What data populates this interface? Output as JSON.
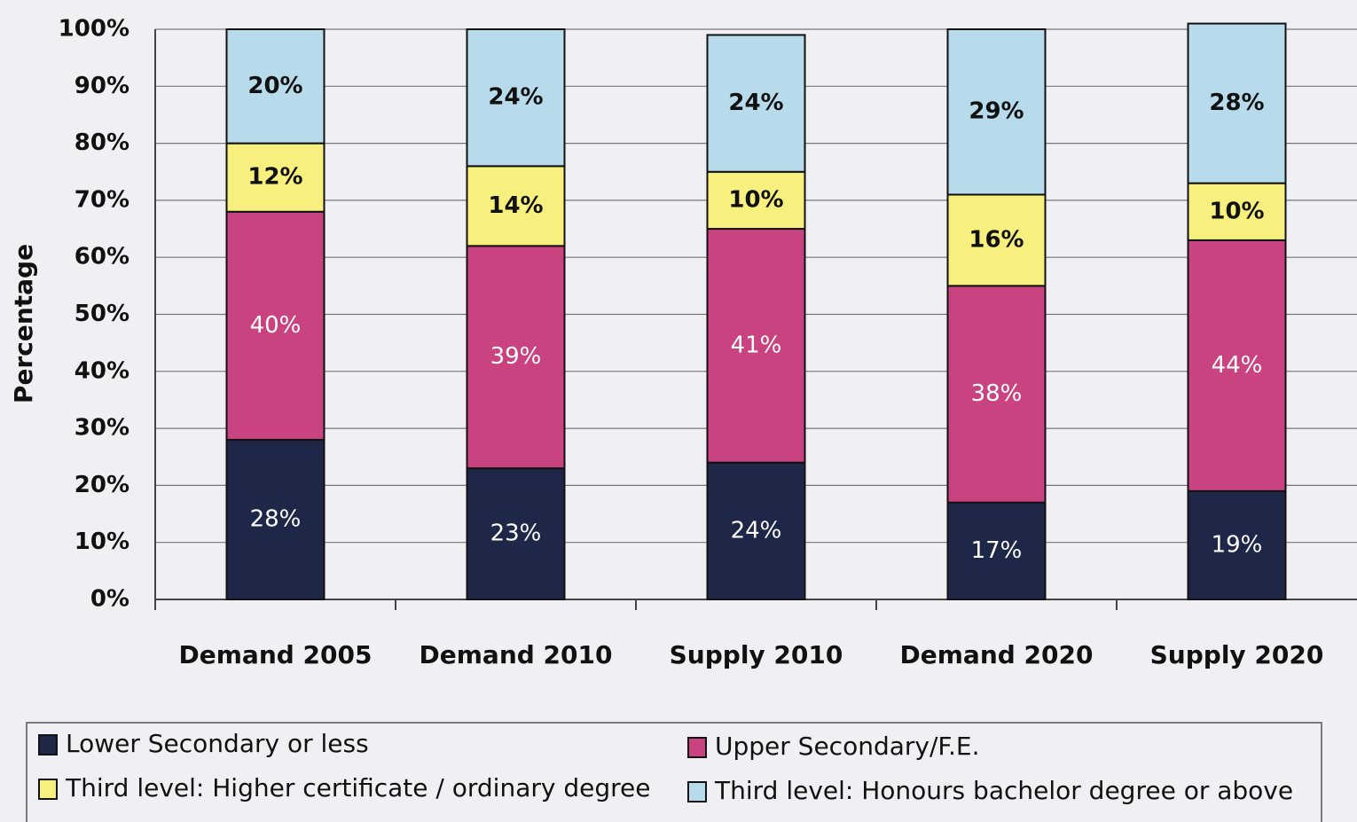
{
  "chart_data": {
    "type": "bar",
    "stacked": true,
    "y_label": "Percentage",
    "categories": [
      "Demand 2005",
      "Demand 2010",
      "Supply 2010",
      "Demand 2020",
      "Supply 2020"
    ],
    "series": [
      {
        "name": "Lower Secondary or less",
        "color": "#1e2748",
        "values": [
          28,
          23,
          24,
          17,
          19
        ],
        "value_labels": [
          "28%",
          "23%",
          "24%",
          "17%",
          "19%"
        ]
      },
      {
        "name": "Upper Secondary/F.E.",
        "color": "#c8437f",
        "values": [
          40,
          39,
          41,
          38,
          44
        ],
        "value_labels": [
          "40%",
          "39%",
          "41%",
          "38%",
          "44%"
        ]
      },
      {
        "name": "Third level: Higher certificate / ordinary degree",
        "color": "#f8f07e",
        "values": [
          12,
          14,
          10,
          16,
          10
        ],
        "value_labels": [
          "12%",
          "14%",
          "10%",
          "16%",
          "10%"
        ]
      },
      {
        "name": "Third level: Honours bachelor degree or above",
        "color": "#b8dbec",
        "values": [
          20,
          24,
          24,
          29,
          28
        ],
        "value_labels": [
          "20%",
          "24%",
          "24%",
          "29%",
          "28%"
        ]
      }
    ],
    "ylim": [
      0,
      100
    ],
    "yticks": [
      {
        "value": 0,
        "label": "0%"
      },
      {
        "value": 10,
        "label": "10%"
      },
      {
        "value": 20,
        "label": "20%"
      },
      {
        "value": 30,
        "label": "30%"
      },
      {
        "value": 40,
        "label": "40%"
      },
      {
        "value": 50,
        "label": "50%"
      },
      {
        "value": 60,
        "label": "60%"
      },
      {
        "value": 70,
        "label": "70%"
      },
      {
        "value": 80,
        "label": "80%"
      },
      {
        "value": 90,
        "label": "90%"
      },
      {
        "value": 100,
        "label": "100%"
      }
    ],
    "grid": true
  }
}
